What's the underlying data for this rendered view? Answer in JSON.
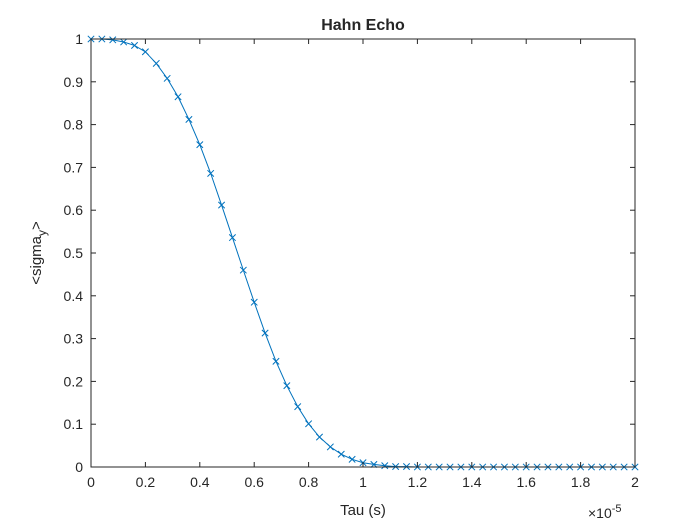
{
  "chart_data": {
    "type": "line",
    "title": "Hahn Echo",
    "xlabel": "Tau (s)",
    "ylabel": "<sigma_y>",
    "ylabel_parts": {
      "prefix": "<sigma",
      "subscript": "y",
      "suffix": ">"
    },
    "x_exponent_label": {
      "base": "×10",
      "exponent": "-5"
    },
    "xlim": [
      0,
      2
    ],
    "ylim": [
      0,
      1
    ],
    "xticks": [
      0,
      0.2,
      0.4,
      0.6,
      0.8,
      1,
      1.2,
      1.4,
      1.6,
      1.8,
      2
    ],
    "xtick_labels": [
      "0",
      "0.2",
      "0.4",
      "0.6",
      "0.8",
      "1",
      "1.2",
      "1.4",
      "1.6",
      "1.8",
      "2"
    ],
    "yticks": [
      0,
      0.1,
      0.2,
      0.3,
      0.4,
      0.5,
      0.6,
      0.7,
      0.8,
      0.9,
      1
    ],
    "ytick_labels": [
      "0",
      "0.1",
      "0.2",
      "0.3",
      "0.4",
      "0.5",
      "0.6",
      "0.7",
      "0.8",
      "0.9",
      "1"
    ],
    "grid": false,
    "box": true,
    "series": [
      {
        "color": "#0072BD",
        "marker": "x",
        "x": [
          0,
          0.04,
          0.08,
          0.12,
          0.16,
          0.2,
          0.24,
          0.28,
          0.32,
          0.36,
          0.4,
          0.44,
          0.48,
          0.52,
          0.56,
          0.6,
          0.64,
          0.68,
          0.72,
          0.76,
          0.8,
          0.84,
          0.88,
          0.92,
          0.96,
          1,
          1.04,
          1.08,
          1.12,
          1.16,
          1.2,
          1.24,
          1.28,
          1.32,
          1.36,
          1.4,
          1.44,
          1.48,
          1.52,
          1.56,
          1.6,
          1.64,
          1.68,
          1.72,
          1.76,
          1.8,
          1.84,
          1.88,
          1.92,
          1.96,
          2
        ],
        "y": [
          1,
          1,
          0.998,
          0.993,
          0.985,
          0.97,
          0.943,
          0.908,
          0.865,
          0.812,
          0.753,
          0.686,
          0.612,
          0.536,
          0.46,
          0.385,
          0.313,
          0.247,
          0.19,
          0.141,
          0.101,
          0.07,
          0.047,
          0.03,
          0.018,
          0.01,
          0.006,
          0.003,
          0.001,
          0.001,
          0,
          0,
          0,
          0,
          0,
          0,
          0,
          0,
          0,
          0,
          0,
          0,
          0,
          0,
          0,
          0,
          0,
          0,
          0,
          0,
          0
        ]
      }
    ]
  }
}
